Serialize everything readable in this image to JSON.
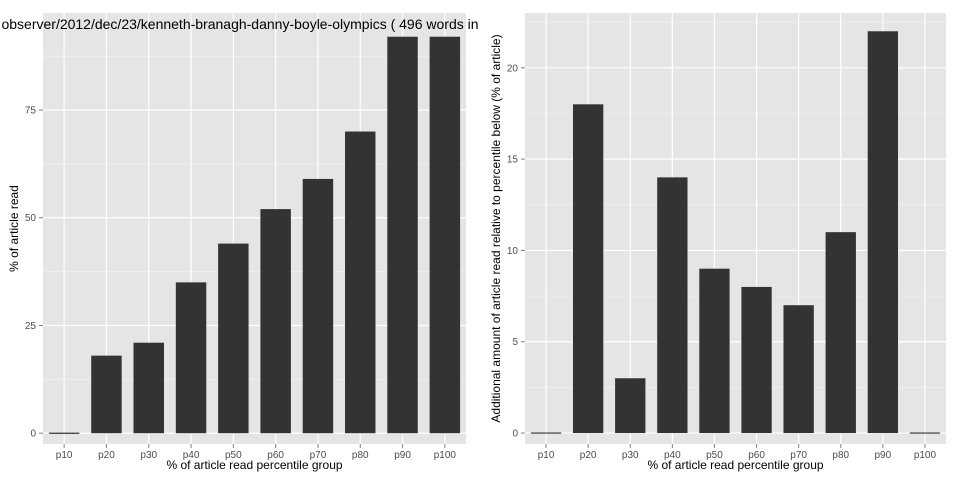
{
  "colors": {
    "panel_bg": "#e5e5e5",
    "grid_major": "#ffffff",
    "grid_minor": "#f2f2f2",
    "bar_fill": "#333333",
    "tick_text": "#4d4d4d"
  },
  "chart_data": [
    {
      "type": "bar",
      "title": "observer/2012/dec/23/kenneth-branagh-danny-boyle-olympics ( 496 words in",
      "xlabel": "% of article read percentile group",
      "ylabel": "% of article read",
      "categories": [
        "p10",
        "p20",
        "p30",
        "p40",
        "p50",
        "p60",
        "p70",
        "p80",
        "p90",
        "p100"
      ],
      "values": [
        0,
        18,
        21,
        35,
        44,
        52,
        59,
        70,
        92,
        92
      ],
      "ylim": [
        -2.5,
        97.5
      ],
      "yticks": [
        0,
        25,
        50,
        75
      ],
      "ytick_labels": [
        "0",
        "25",
        "50",
        "75"
      ],
      "grid": true
    },
    {
      "type": "bar",
      "title": "",
      "xlabel": "% of article read percentile group",
      "ylabel": "Additional amount of article read relative to percentile below (% of article)",
      "categories": [
        "p10",
        "p20",
        "p30",
        "p40",
        "p50",
        "p60",
        "p70",
        "p80",
        "p90",
        "p100"
      ],
      "values": [
        0,
        18,
        3,
        14,
        9,
        8,
        7,
        11,
        22,
        0
      ],
      "ylim": [
        -0.6,
        23.0
      ],
      "yticks": [
        0,
        5,
        10,
        15,
        20
      ],
      "ytick_labels": [
        "0",
        "5",
        "10",
        "15",
        "20"
      ],
      "grid": true
    }
  ]
}
